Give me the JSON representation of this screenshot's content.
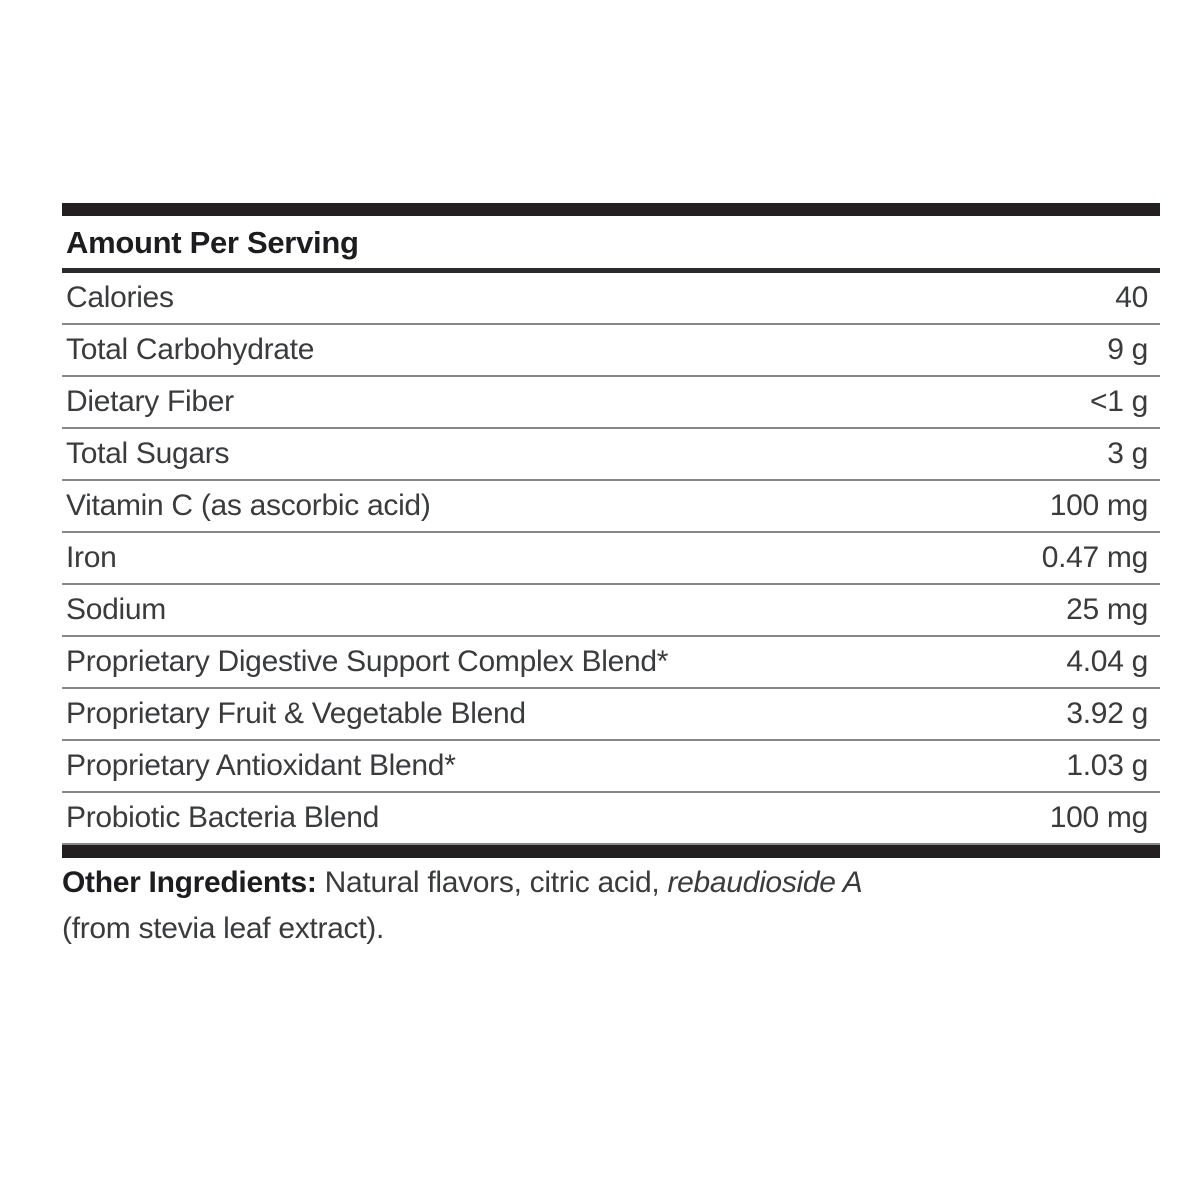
{
  "nutrition_label": {
    "header": "Amount Per Serving",
    "rows": [
      {
        "name": "Calories",
        "amount": "40"
      },
      {
        "name": "Total Carbohydrate",
        "amount": "9 g"
      },
      {
        "name": "Dietary Fiber",
        "amount": "<1 g"
      },
      {
        "name": "Total Sugars",
        "amount": "3 g"
      },
      {
        "name": "Vitamin C (as ascorbic acid)",
        "amount": "100 mg"
      },
      {
        "name": "Iron",
        "amount": "0.47 mg"
      },
      {
        "name": "Sodium",
        "amount": "25 mg"
      },
      {
        "name": "Proprietary Digestive Support Complex Blend*",
        "amount": "4.04 g"
      },
      {
        "name": "Proprietary Fruit & Vegetable Blend",
        "amount": "3.92 g"
      },
      {
        "name": "Proprietary Antioxidant Blend*",
        "amount": "1.03 g"
      },
      {
        "name": "Probiotic Bacteria Blend",
        "amount": "100 mg"
      }
    ],
    "other_ingredients": {
      "label": "Other Ingredients:",
      "line1_rest": "Natural flavors, citric acid,",
      "italic_term": "rebaudioside A",
      "line2": "(from stevia leaf extract)."
    },
    "colors": {
      "bar": "#231f20",
      "heading_text": "#1d1d1f",
      "body_text": "#3a3b3d",
      "thin_rule": "#888888",
      "header_rule": "#2b2b2d"
    }
  }
}
